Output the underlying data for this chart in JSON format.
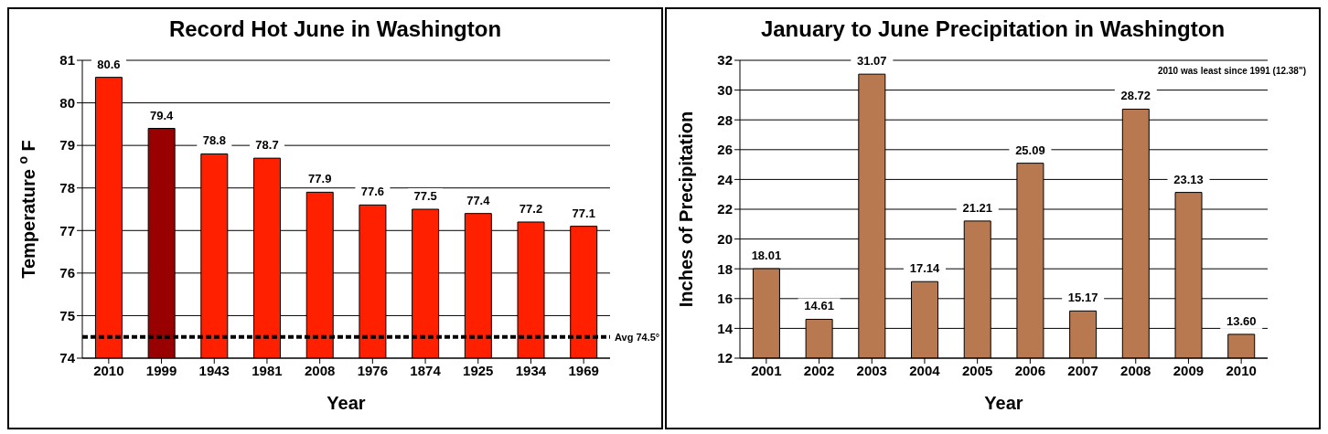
{
  "chart_data": [
    {
      "type": "bar",
      "title": "Record Hot June in Washington",
      "xlabel": "Year",
      "ylabel": "Temperature $^{o}$F",
      "categories": [
        "2010",
        "1999",
        "1943",
        "1981",
        "2008",
        "1976",
        "1874",
        "1925",
        "1934",
        "1969"
      ],
      "values": [
        80.6,
        79.4,
        78.8,
        78.7,
        77.9,
        77.6,
        77.5,
        77.4,
        77.2,
        77.1
      ],
      "colors": [
        "#ff2000",
        "#990000",
        "#ff2000",
        "#ff2000",
        "#ff2000",
        "#ff2000",
        "#ff2000",
        "#ff2000",
        "#ff2000",
        "#ff2000"
      ],
      "ylim": [
        74,
        81
      ],
      "yticks": [
        74,
        75,
        76,
        77,
        78,
        79,
        80,
        81
      ],
      "grid": "y",
      "data_labels": true,
      "ref_lines": [
        {
          "axis": "y",
          "value": 74.5,
          "label": "Avg 74.5°",
          "color": "#000000",
          "line_style": "dashed"
        }
      ]
    },
    {
      "type": "bar",
      "title": "January to June Precipitation in Washington",
      "xlabel": "Year",
      "ylabel": "Inches of Precipitation",
      "categories": [
        "2001",
        "2002",
        "2003",
        "2004",
        "2005",
        "2006",
        "2007",
        "2008",
        "2009",
        "2010"
      ],
      "values": [
        18.01,
        14.61,
        31.07,
        17.14,
        21.21,
        25.09,
        15.17,
        28.72,
        23.13,
        13.6
      ],
      "value_labels": [
        "18.01",
        "14.61",
        "31.07",
        "17.14",
        "21.21",
        "25.09",
        "15.17",
        "28.72",
        "23.13",
        "13.60"
      ],
      "color": "#b87850",
      "ylim": [
        12,
        32
      ],
      "yticks": [
        12,
        14,
        16,
        18,
        20,
        22,
        24,
        26,
        28,
        30,
        32
      ],
      "grid": "y",
      "annotations": [
        "2010 was least since 1991 (12.38\")"
      ]
    }
  ]
}
